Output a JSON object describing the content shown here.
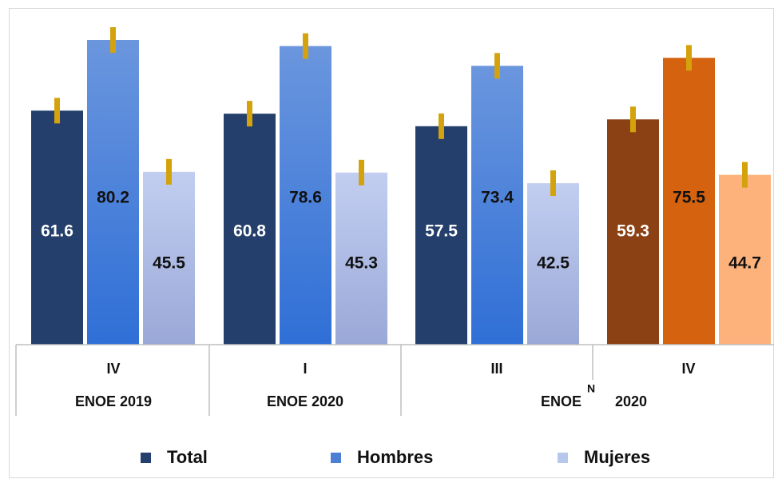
{
  "chart_data": {
    "type": "bar",
    "categories": [
      "IV",
      "I",
      "III",
      "IV"
    ],
    "group_labels": [
      "ENOE 2019",
      "ENOE 2020",
      "ENOE",
      "2020"
    ],
    "group_superscript": "N",
    "series": [
      {
        "name": "Total",
        "values": [
          61.6,
          60.8,
          57.5,
          59.3
        ]
      },
      {
        "name": "Hombres",
        "values": [
          80.2,
          78.6,
          73.4,
          75.5
        ]
      },
      {
        "name": "Mujeres",
        "values": [
          45.5,
          45.3,
          42.5,
          44.7
        ]
      }
    ],
    "legend_position": "bottom",
    "error_bars": true,
    "ylim": [
      0,
      88
    ],
    "colors": {
      "total": "#243f6b",
      "hombres": "#4a7fd4",
      "mujeres": "#b7c6eb",
      "last_total": "#8b4113",
      "last_hombres": "#d4620f",
      "last_mujeres": "#fdb27c",
      "error_bar": "#d4a20c"
    }
  }
}
